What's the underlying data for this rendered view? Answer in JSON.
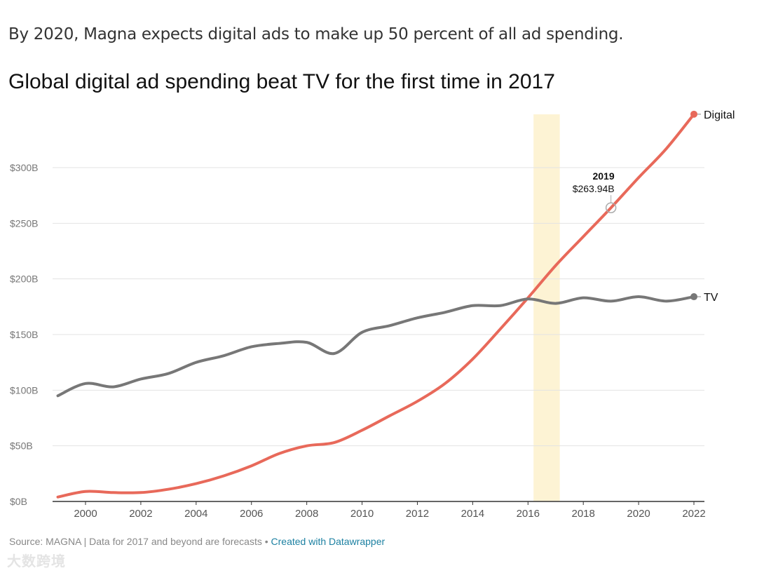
{
  "intro": "By 2020, Magna expects digital ads to make up 50 percent of all ad spending.",
  "footer": {
    "source": "Source: MAGNA | Data for 2017 and beyond are forecasts",
    "sep": " • ",
    "link": "Created with Datawrapper"
  },
  "watermark": "大数跨境",
  "chart_data": {
    "type": "line",
    "title": "Global digital ad spending beat TV for the first time in 2017",
    "xlabel": "",
    "ylabel": "",
    "x": [
      1999,
      2000,
      2001,
      2002,
      2003,
      2004,
      2005,
      2006,
      2007,
      2008,
      2009,
      2010,
      2011,
      2012,
      2013,
      2014,
      2015,
      2016,
      2017,
      2018,
      2019,
      2020,
      2021,
      2022
    ],
    "series": [
      {
        "name": "Digital",
        "color": "#e8695a",
        "values": [
          4,
          9,
          8,
          8,
          11,
          16,
          23,
          32,
          43,
          50,
          53,
          64,
          77,
          90,
          106,
          128,
          155,
          183,
          212,
          238,
          263.94,
          291,
          317,
          348
        ]
      },
      {
        "name": "TV",
        "color": "#777777",
        "values": [
          95,
          106,
          103,
          110,
          115,
          125,
          131,
          139,
          142,
          143,
          133,
          152,
          158,
          165,
          170,
          176,
          176,
          182,
          178,
          183,
          180,
          184,
          180,
          184
        ]
      }
    ],
    "xlim": [
      1999,
      2022
    ],
    "ylim": [
      0,
      300
    ],
    "xticks": [
      "2000",
      "2002",
      "2004",
      "2006",
      "2008",
      "2010",
      "2012",
      "2014",
      "2016",
      "2018",
      "2020",
      "2022"
    ],
    "yticks": [
      {
        "v": 0,
        "label": "$0B"
      },
      {
        "v": 50,
        "label": "$50B"
      },
      {
        "v": 100,
        "label": "$100B"
      },
      {
        "v": 150,
        "label": "$150B"
      },
      {
        "v": 200,
        "label": "$200B"
      },
      {
        "v": 250,
        "label": "$250B"
      },
      {
        "v": 300,
        "label": "$300B"
      }
    ],
    "highlight": {
      "from": 2016.2,
      "to": 2017.15,
      "color": "#fdf3d4"
    },
    "annotation": {
      "x": 2019,
      "y": 263.94,
      "title": "2019",
      "value": "$263.94B"
    },
    "grid": true,
    "legend": "inline-right"
  }
}
